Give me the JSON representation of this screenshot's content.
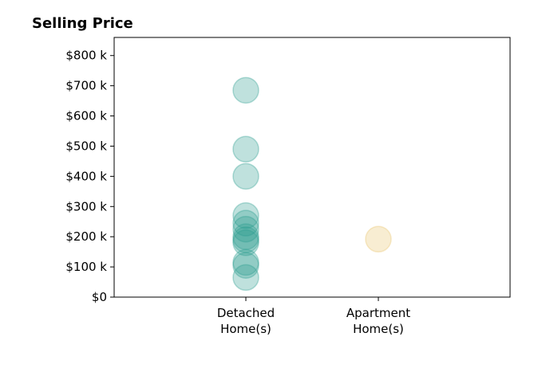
{
  "chart_data": {
    "type": "scatter",
    "title": "Selling Price",
    "xlabel": "",
    "ylabel": "",
    "categories": [
      "Detached\nHome(s)",
      "Apartment\nHome(s)"
    ],
    "ylim": [
      0,
      860
    ],
    "y_ticks": [
      {
        "value": 0,
        "label": "$0"
      },
      {
        "value": 100,
        "label": "$100 k"
      },
      {
        "value": 200,
        "label": "$200 k"
      },
      {
        "value": 300,
        "label": "$300 k"
      },
      {
        "value": 400,
        "label": "$400 k"
      },
      {
        "value": 500,
        "label": "$500 k"
      },
      {
        "value": 600,
        "label": "$600 k"
      },
      {
        "value": 700,
        "label": "$700 k"
      },
      {
        "value": 800,
        "label": "$800 k"
      }
    ],
    "grid": false,
    "series": [
      {
        "category": "Detached\nHome(s)",
        "color": "#2a9d8f",
        "values": [
          685,
          490,
          400,
          270,
          245,
          225,
          200,
          190,
          180,
          115,
          105,
          65
        ]
      },
      {
        "category": "Apartment\nHome(s)",
        "color": "#e9c46a",
        "values": [
          192
        ]
      }
    ]
  }
}
